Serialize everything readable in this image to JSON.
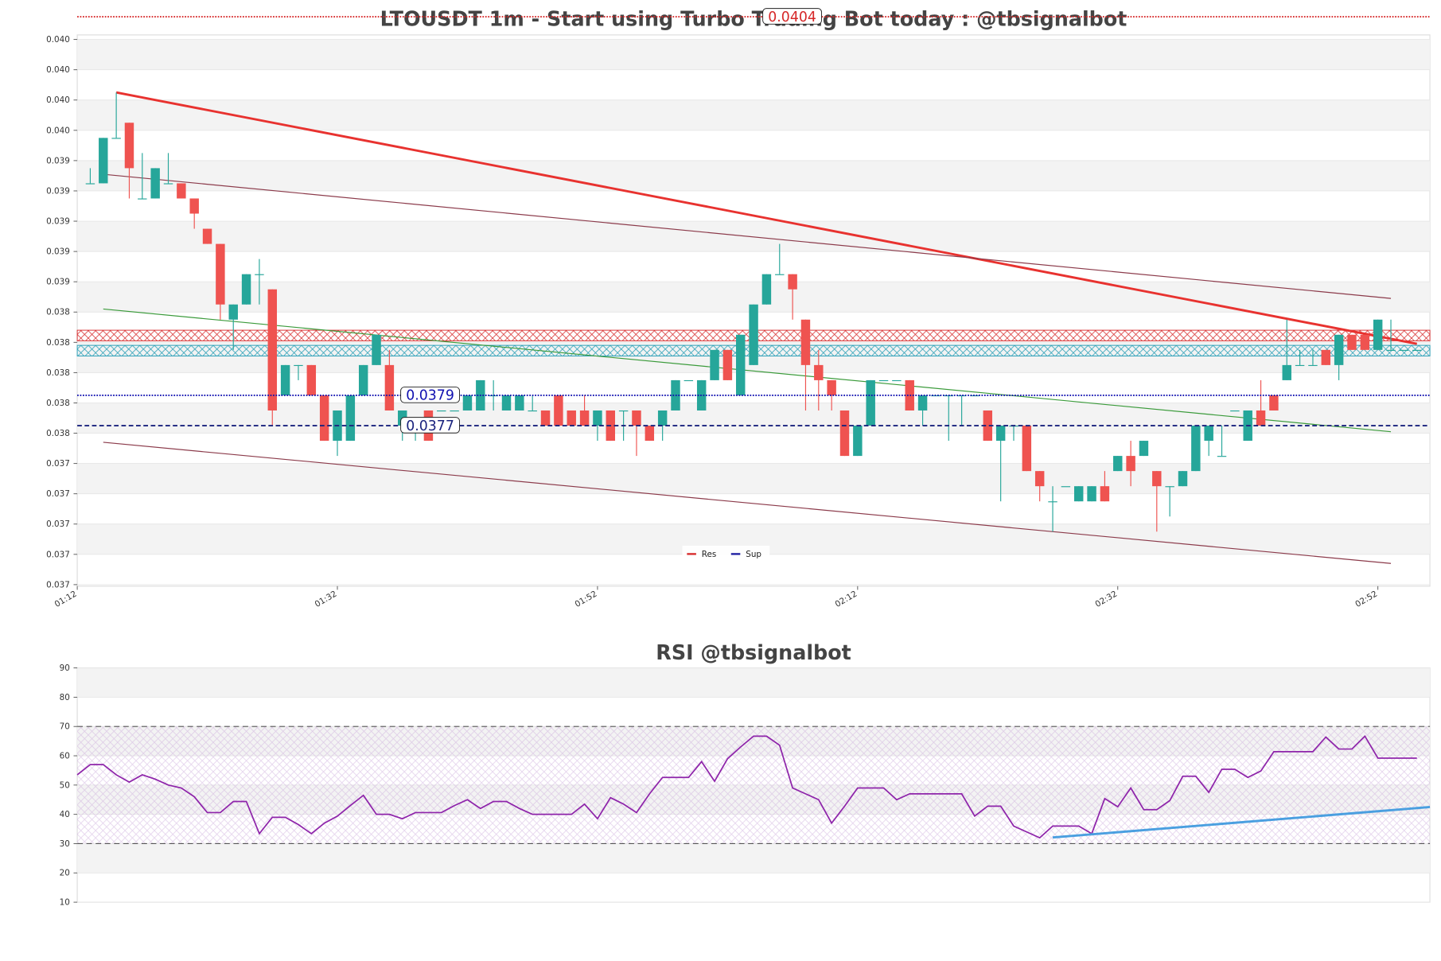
{
  "chart_data": [
    {
      "type": "candlestick",
      "title": "LTOUSDT 1m - Start using Turbo Trading Bot today : @tbsignalbot",
      "x": [
        "01:13",
        "01:14",
        "01:15",
        "01:16",
        "01:17",
        "01:18",
        "01:19",
        "01:20",
        "01:21",
        "01:22",
        "01:23",
        "01:24",
        "01:25",
        "01:26",
        "01:27",
        "01:28",
        "01:29",
        "01:30",
        "01:31",
        "01:32",
        "01:33",
        "01:34",
        "01:35",
        "01:36",
        "01:37",
        "01:38",
        "01:39",
        "01:40",
        "01:41",
        "01:42",
        "01:43",
        "01:44",
        "01:45",
        "01:46",
        "01:47",
        "01:48",
        "01:49",
        "01:50",
        "01:51",
        "01:52",
        "01:53",
        "01:54",
        "01:55",
        "01:56",
        "01:57",
        "01:58",
        "01:59",
        "02:00",
        "02:01",
        "02:02",
        "02:03",
        "02:04",
        "02:05",
        "02:06",
        "02:07",
        "02:08",
        "02:09",
        "02:10",
        "02:11",
        "02:12",
        "02:13",
        "02:14",
        "02:15",
        "02:16",
        "02:17",
        "02:18",
        "02:19",
        "02:20",
        "02:21",
        "02:22",
        "02:23",
        "02:24",
        "02:25",
        "02:26",
        "02:27",
        "02:28",
        "02:29",
        "02:30",
        "02:31",
        "02:32",
        "02:33",
        "02:34",
        "02:35",
        "02:36",
        "02:37",
        "02:38",
        "02:39",
        "02:40",
        "02:41",
        "02:42",
        "02:43",
        "02:44",
        "02:45",
        "02:46",
        "02:47",
        "02:48",
        "02:49",
        "02:50",
        "02:51",
        "02:52",
        "02:53",
        "02:54",
        "02:55"
      ],
      "open": [
        0.0393,
        0.0393,
        0.0396,
        0.0397,
        0.0392,
        0.0392,
        0.0393,
        0.0393,
        0.0392,
        0.039,
        0.0389,
        0.0384,
        0.0385,
        0.0387,
        0.0386,
        0.0379,
        0.0381,
        0.0381,
        0.0379,
        0.0376,
        0.0376,
        0.0379,
        0.0381,
        0.0381,
        0.0377,
        0.0377,
        0.0378,
        0.0378,
        0.0378,
        0.0378,
        0.0378,
        0.0379,
        0.0378,
        0.0378,
        0.0378,
        0.0378,
        0.0379,
        0.0378,
        0.0378,
        0.0377,
        0.0378,
        0.0378,
        0.0378,
        0.0377,
        0.0377,
        0.0378,
        0.038,
        0.0378,
        0.038,
        0.0382,
        0.0379,
        0.0381,
        0.0385,
        0.0387,
        0.0387,
        0.0384,
        0.0381,
        0.038,
        0.0378,
        0.0375,
        0.0377,
        0.038,
        0.038,
        0.038,
        0.0378,
        0.0379,
        0.0379,
        0.0379,
        0.0379,
        0.0378,
        0.0376,
        0.0377,
        0.0377,
        0.0374,
        0.0372,
        0.0373,
        0.0372,
        0.0372,
        0.0373,
        0.0374,
        0.0375,
        0.0375,
        0.0374,
        0.0373,
        0.0373,
        0.0374,
        0.0376,
        0.0375,
        0.0378,
        0.0376,
        0.0378,
        0.0379,
        0.038,
        0.0381,
        0.0381,
        0.0382,
        0.0381,
        0.0383,
        0.0383,
        0.0382,
        0.0382,
        0.0382,
        0.0382
      ],
      "high": [
        0.0394,
        0.0396,
        0.0399,
        0.0397,
        0.0395,
        0.0394,
        0.0395,
        0.0393,
        0.0392,
        0.039,
        0.0389,
        0.0385,
        0.0387,
        0.0388,
        0.0386,
        0.0381,
        0.0381,
        0.0381,
        0.0379,
        0.0378,
        0.0379,
        0.0381,
        0.0383,
        0.0382,
        0.0378,
        0.0377,
        0.0378,
        0.0378,
        0.0378,
        0.0379,
        0.038,
        0.038,
        0.0379,
        0.0379,
        0.0379,
        0.0378,
        0.0379,
        0.0378,
        0.0379,
        0.0378,
        0.0378,
        0.0378,
        0.0378,
        0.0377,
        0.0378,
        0.038,
        0.038,
        0.038,
        0.0382,
        0.0382,
        0.0383,
        0.0385,
        0.0387,
        0.0389,
        0.0387,
        0.0384,
        0.0382,
        0.038,
        0.0378,
        0.0377,
        0.038,
        0.038,
        0.038,
        0.038,
        0.0379,
        0.0379,
        0.0379,
        0.0379,
        0.0379,
        0.0378,
        0.0377,
        0.0377,
        0.0377,
        0.0374,
        0.0373,
        0.0373,
        0.0373,
        0.0373,
        0.0374,
        0.0375,
        0.0376,
        0.0376,
        0.0374,
        0.0373,
        0.0374,
        0.0377,
        0.0377,
        0.0377,
        0.0378,
        0.0378,
        0.038,
        0.0379,
        0.0384,
        0.0382,
        0.0382,
        0.0382,
        0.0383,
        0.0383,
        0.0383,
        0.0384,
        0.0384,
        0.0382,
        0.0382
      ],
      "low": [
        0.0393,
        0.0393,
        0.0396,
        0.0392,
        0.0392,
        0.0392,
        0.0393,
        0.0392,
        0.039,
        0.0389,
        0.0384,
        0.0382,
        0.0385,
        0.0385,
        0.0377,
        0.0379,
        0.038,
        0.0379,
        0.0376,
        0.0375,
        0.0376,
        0.0379,
        0.0381,
        0.0378,
        0.0376,
        0.0376,
        0.0376,
        0.0378,
        0.0378,
        0.0378,
        0.0378,
        0.0378,
        0.0378,
        0.0378,
        0.0378,
        0.0377,
        0.0377,
        0.0377,
        0.0377,
        0.0376,
        0.0376,
        0.0376,
        0.0375,
        0.0376,
        0.0376,
        0.0378,
        0.038,
        0.0378,
        0.038,
        0.038,
        0.0379,
        0.0381,
        0.0385,
        0.0387,
        0.0384,
        0.0378,
        0.0378,
        0.0378,
        0.0375,
        0.0375,
        0.0377,
        0.038,
        0.038,
        0.0378,
        0.0377,
        0.0379,
        0.0376,
        0.0377,
        0.0379,
        0.0376,
        0.0372,
        0.0376,
        0.0374,
        0.0372,
        0.037,
        0.0373,
        0.0372,
        0.0372,
        0.0372,
        0.0374,
        0.0373,
        0.0375,
        0.037,
        0.0371,
        0.0373,
        0.0374,
        0.0375,
        0.0375,
        0.0378,
        0.0376,
        0.0377,
        0.0378,
        0.038,
        0.0381,
        0.0381,
        0.0381,
        0.038,
        0.0382,
        0.0382,
        0.0382,
        0.0382,
        0.0382,
        0.0382
      ],
      "close": [
        0.0393,
        0.0396,
        0.0396,
        0.0394,
        0.0392,
        0.0394,
        0.0393,
        0.0392,
        0.0391,
        0.0389,
        0.0385,
        0.0385,
        0.0387,
        0.0387,
        0.0378,
        0.0381,
        0.0381,
        0.0379,
        0.0376,
        0.0378,
        0.0379,
        0.0381,
        0.0383,
        0.0378,
        0.0378,
        0.0377,
        0.0376,
        0.0378,
        0.0378,
        0.0379,
        0.038,
        0.0379,
        0.0379,
        0.0379,
        0.0378,
        0.0377,
        0.0377,
        0.0377,
        0.0377,
        0.0378,
        0.0376,
        0.0378,
        0.0377,
        0.0376,
        0.0378,
        0.038,
        0.038,
        0.038,
        0.0382,
        0.038,
        0.0383,
        0.0385,
        0.0387,
        0.0387,
        0.0386,
        0.0381,
        0.038,
        0.0379,
        0.0375,
        0.0377,
        0.038,
        0.038,
        0.038,
        0.0378,
        0.0379,
        0.0379,
        0.0379,
        0.0379,
        0.0379,
        0.0376,
        0.0377,
        0.0377,
        0.0374,
        0.0373,
        0.0372,
        0.0373,
        0.0373,
        0.0373,
        0.0372,
        0.0375,
        0.0374,
        0.0376,
        0.0373,
        0.0373,
        0.0374,
        0.0377,
        0.0377,
        0.0375,
        0.0378,
        0.0378,
        0.0377,
        0.0378,
        0.0381,
        0.0381,
        0.0381,
        0.0381,
        0.0383,
        0.0382,
        0.0382,
        0.0384,
        0.0382,
        0.0382,
        0.0382
      ],
      "up_color": "#26a69a",
      "down_color": "#ef5350",
      "xlim": [
        "01:12",
        "02:56"
      ],
      "xticks": [
        "01:12",
        "01:32",
        "01:52",
        "02:12",
        "02:32",
        "02:52"
      ],
      "ylim": [
        0.03664,
        0.04028
      ],
      "yticks": [
        {
          "value": 0.03665,
          "label": "0.037"
        },
        {
          "value": 0.03685,
          "label": "0.037"
        },
        {
          "value": 0.03705,
          "label": "0.037"
        },
        {
          "value": 0.03725,
          "label": "0.037"
        },
        {
          "value": 0.03745,
          "label": "0.037"
        },
        {
          "value": 0.03765,
          "label": "0.038"
        },
        {
          "value": 0.03785,
          "label": "0.038"
        },
        {
          "value": 0.03805,
          "label": "0.038"
        },
        {
          "value": 0.03825,
          "label": "0.038"
        },
        {
          "value": 0.03845,
          "label": "0.038"
        },
        {
          "value": 0.03865,
          "label": "0.039"
        },
        {
          "value": 0.03885,
          "label": "0.039"
        },
        {
          "value": 0.03905,
          "label": "0.039"
        },
        {
          "value": 0.03925,
          "label": "0.039"
        },
        {
          "value": 0.03945,
          "label": "0.039"
        },
        {
          "value": 0.03965,
          "label": "0.040"
        },
        {
          "value": 0.03985,
          "label": "0.040"
        },
        {
          "value": 0.04005,
          "label": "0.040"
        },
        {
          "value": 0.04025,
          "label": "0.040"
        }
      ],
      "levels": [
        {
          "value": 0.0404,
          "color": "#d62728",
          "style": "dotted"
        },
        {
          "value": 0.0379,
          "color": "#1010b0",
          "style": "dotted"
        },
        {
          "value": 0.0377,
          "color": "#1a237e",
          "style": "dashed"
        }
      ],
      "zones": [
        {
          "range": [
            0.03826,
            0.03833
          ],
          "color": "#d62728"
        },
        {
          "range": [
            0.03816,
            0.03823
          ],
          "color": "#1f9bb4"
        }
      ],
      "trendlines": [
        {
          "x": [
            "01:15",
            "02:55"
          ],
          "y": [
            0.0399,
            0.03824
          ],
          "color": "#e8322f",
          "width": 2.5
        },
        {
          "x": [
            "01:14",
            "02:53"
          ],
          "y": [
            0.03936,
            0.03854
          ],
          "color": "#8b3a4a",
          "width": 1
        },
        {
          "x": [
            "01:14",
            "02:53"
          ],
          "y": [
            0.03847,
            0.03766
          ],
          "color": "#3a9a3a",
          "width": 1
        },
        {
          "x": [
            "01:14",
            "02:53"
          ],
          "y": [
            0.03759,
            0.03679
          ],
          "color": "#8b3a4a",
          "width": 1
        }
      ],
      "legend": [
        {
          "name": "Res",
          "color": "#d62728"
        },
        {
          "name": "Sup",
          "color": "#1a1aa0"
        }
      ],
      "legend_loc": "lower center",
      "grid_bands": true
    },
    {
      "type": "line",
      "title": "RSI @tbsignalbot",
      "x": [
        "01:12",
        "01:13",
        "01:14",
        "01:15",
        "01:16",
        "01:17",
        "01:18",
        "01:19",
        "01:20",
        "01:21",
        "01:22",
        "01:23",
        "01:24",
        "01:25",
        "01:26",
        "01:27",
        "01:28",
        "01:29",
        "01:30",
        "01:31",
        "01:32",
        "01:33",
        "01:34",
        "01:35",
        "01:36",
        "01:37",
        "01:38",
        "01:39",
        "01:40",
        "01:41",
        "01:42",
        "01:43",
        "01:44",
        "01:45",
        "01:46",
        "01:47",
        "01:48",
        "01:49",
        "01:50",
        "01:51",
        "01:52",
        "01:53",
        "01:54",
        "01:55",
        "01:56",
        "01:57",
        "01:58",
        "01:59",
        "02:00",
        "02:01",
        "02:02",
        "02:03",
        "02:04",
        "02:05",
        "02:06",
        "02:07",
        "02:08",
        "02:09",
        "02:10",
        "02:11",
        "02:12",
        "02:13",
        "02:14",
        "02:15",
        "02:16",
        "02:17",
        "02:18",
        "02:19",
        "02:20",
        "02:21",
        "02:22",
        "02:23",
        "02:24",
        "02:25",
        "02:26",
        "02:27",
        "02:28",
        "02:29",
        "02:30",
        "02:31",
        "02:32",
        "02:33",
        "02:34",
        "02:35",
        "02:36",
        "02:37",
        "02:38",
        "02:39",
        "02:40",
        "02:41",
        "02:42",
        "02:43",
        "02:44",
        "02:45",
        "02:46",
        "02:47",
        "02:48",
        "02:49",
        "02:50",
        "02:51",
        "02:52",
        "02:53",
        "02:54",
        "02:55"
      ],
      "values": [
        53.5,
        57,
        57,
        53.5,
        51,
        53.5,
        52,
        50,
        49,
        46,
        40.6,
        40.6,
        44.4,
        44.4,
        33.4,
        39,
        39,
        36.5,
        33.4,
        37,
        39.4,
        43,
        46.5,
        40,
        40,
        38.5,
        40.6,
        40.6,
        40.6,
        43,
        45,
        42,
        44.4,
        44.4,
        42,
        40,
        40,
        40,
        40,
        43.5,
        38.5,
        45.7,
        43.5,
        40.6,
        47,
        52.6,
        52.6,
        52.6,
        58,
        51.3,
        59,
        63,
        66.7,
        66.7,
        63.6,
        49,
        47,
        45,
        37,
        42.8,
        49,
        49,
        49,
        45,
        47,
        47,
        47,
        47,
        47,
        39.4,
        42.8,
        42.8,
        36,
        34,
        32,
        36,
        36,
        36,
        33.4,
        45.4,
        42.6,
        49,
        41.6,
        41.6,
        44.7,
        53,
        53,
        47.5,
        55.4,
        55.4,
        52.6,
        54.8,
        61.4,
        61.4,
        61.4,
        61.4,
        66.4,
        62.3,
        62.3,
        66.7,
        59.2,
        59.2,
        59.2,
        59.2
      ],
      "color": "#8e24aa",
      "xlim": [
        "01:12",
        "02:56"
      ],
      "ylim": [
        10,
        90
      ],
      "yticks": [
        10,
        20,
        30,
        40,
        50,
        60,
        70,
        80,
        90
      ],
      "hlines": [
        70,
        30
      ],
      "band": [
        30,
        70
      ],
      "trendlines": [
        {
          "x": [
            "02:27",
            "02:56"
          ],
          "y": [
            32.1,
            42.5
          ],
          "color": "#4a9fe0",
          "width": 2.5
        }
      ],
      "grid_bands": true
    }
  ]
}
